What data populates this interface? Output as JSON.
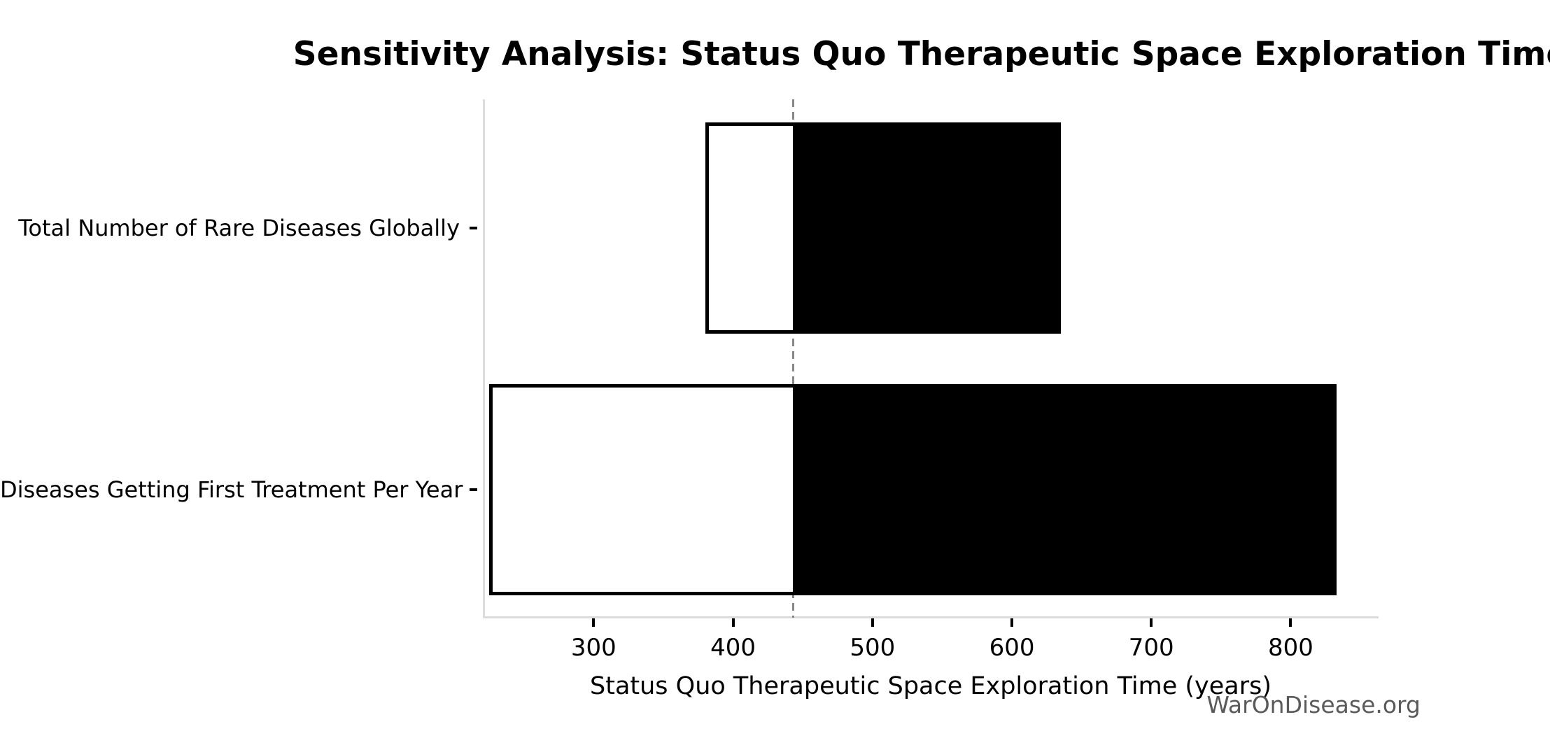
{
  "chart_data": {
    "type": "bar",
    "subtype": "horizontal-tornado-sensitivity",
    "title": "Sensitivity Analysis: Status Quo Therapeutic Space Exploration Time",
    "xlabel": "Status Quo Therapeutic Space Exploration Time (years)",
    "watermark": "WarOnDisease.org",
    "categories": [
      "Total Number of Rare Diseases Globally",
      "Diseases Getting First Treatment Per Year"
    ],
    "bars": [
      {
        "category": "Total Number of Rare Diseases Globally",
        "low": 380,
        "high": 635
      },
      {
        "category": "Diseases Getting First Treatment Per Year",
        "low": 225,
        "high": 833
      }
    ],
    "baseline": 443,
    "xticks": [
      300,
      400,
      500,
      600,
      700,
      800
    ],
    "xtick_labels": [
      "300",
      "400",
      "500",
      "600",
      "700",
      "800"
    ],
    "xlim": [
      221,
      862
    ],
    "grid": false,
    "legend": null,
    "colors": {
      "bar_fill_above_baseline": "#000000",
      "bar_fill_below_baseline": "#ffffff",
      "bar_edge": "#000000",
      "baseline_line": "#888888",
      "spine": "#dcdcdc",
      "tick": "#000000",
      "text": "#000000",
      "watermark": "#5a5a5a",
      "background": "#ffffff"
    }
  }
}
